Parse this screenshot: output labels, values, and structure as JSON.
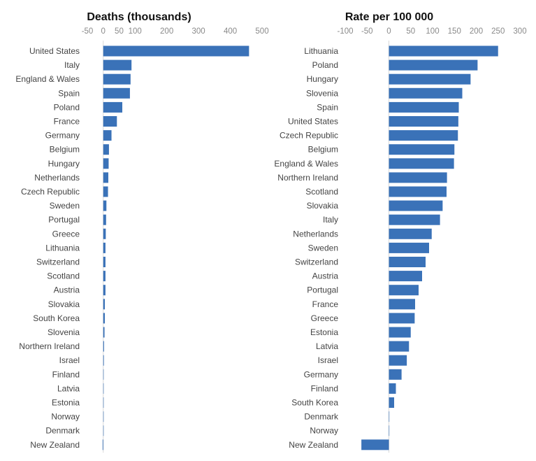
{
  "bar_color": "#3a72b8",
  "chart_data": [
    {
      "type": "bar",
      "orientation": "horizontal",
      "title": "Deaths (thousands)",
      "xlim": [
        -50,
        500
      ],
      "ticks": [
        -50,
        0,
        50,
        100,
        200,
        300,
        400,
        500
      ],
      "tick_labels": [
        "-50",
        "0",
        "50",
        "100",
        "200",
        "300",
        "400",
        "500"
      ],
      "categories": [
        "United States",
        "Italy",
        "England & Wales",
        "Spain",
        "Poland",
        "France",
        "Germany",
        "Belgium",
        "Hungary",
        "Netherlands",
        "Czech Republic",
        "Sweden",
        "Portugal",
        "Greece",
        "Lithuania",
        "Switzerland",
        "Scotland",
        "Austria",
        "Slovakia",
        "South Korea",
        "Slovenia",
        "Northern Ireland",
        "Israel",
        "Finland",
        "Latvia",
        "Estonia",
        "Norway",
        "Denmark",
        "New Zealand"
      ],
      "values": [
        459,
        89,
        86,
        84,
        60,
        43,
        26,
        18,
        17,
        16,
        15,
        10,
        9,
        8,
        7,
        7,
        7,
        7,
        5,
        5,
        4,
        2.5,
        2,
        0.5,
        0.5,
        0.3,
        0.1,
        0.1,
        -2
      ]
    },
    {
      "type": "bar",
      "orientation": "horizontal",
      "title": "Rate per 100 000",
      "xlim": [
        -100,
        300
      ],
      "ticks": [
        -100,
        -50,
        0,
        50,
        100,
        150,
        200,
        250,
        300
      ],
      "tick_labels": [
        "-100",
        "-50",
        "0",
        "50",
        "100",
        "150",
        "200",
        "250",
        "300"
      ],
      "categories": [
        "Lithuania",
        "Poland",
        "Hungary",
        "Slovenia",
        "Spain",
        "United States",
        "Czech Republic",
        "Belgium",
        "England & Wales",
        "Northern Ireland",
        "Scotland",
        "Slovakia",
        "Italy",
        "Netherlands",
        "Sweden",
        "Switzerland",
        "Austria",
        "Portugal",
        "France",
        "Greece",
        "Estonia",
        "Latvia",
        "Israel",
        "Germany",
        "Finland",
        "South Korea",
        "Denmark",
        "Norway",
        "New Zealand"
      ],
      "values": [
        250,
        203,
        187,
        168,
        160,
        159,
        158,
        150,
        149,
        133,
        132,
        123,
        117,
        98,
        92,
        84,
        76,
        68,
        60,
        59,
        50,
        46,
        41,
        29,
        16,
        12,
        1,
        0.5,
        -63
      ]
    }
  ]
}
